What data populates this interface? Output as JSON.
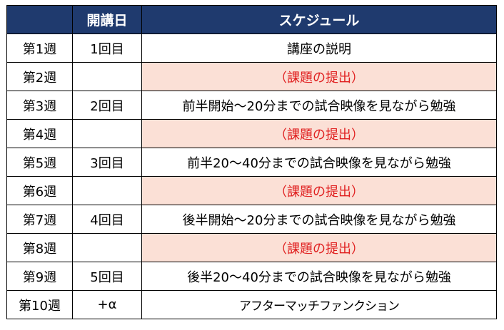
{
  "headers": [
    "",
    "開講日",
    "スケジュール"
  ],
  "rows": [
    {
      "week": "第1週",
      "session": "1回目",
      "schedule": "講座の説明",
      "task": false
    },
    {
      "week": "第2週",
      "session": "",
      "schedule": "（課題の提出）",
      "task": true
    },
    {
      "week": "第3週",
      "session": "2回目",
      "schedule": "前半開始～20分までの試合映像を見ながら勉強",
      "task": false
    },
    {
      "week": "第4週",
      "session": "",
      "schedule": "（課題の提出）",
      "task": true
    },
    {
      "week": "第5週",
      "session": "3回目",
      "schedule": "前半20～40分までの試合映像を見ながら勉強",
      "task": false
    },
    {
      "week": "第6週",
      "session": "",
      "schedule": "（課題の提出）",
      "task": true
    },
    {
      "week": "第7週",
      "session": "4回目",
      "schedule": "後半開始～20分までの試合映像を見ながら勉強",
      "task": false
    },
    {
      "week": "第8週",
      "session": "",
      "schedule": "（課題の提出）",
      "task": true
    },
    {
      "week": "第9週",
      "session": "5回目",
      "schedule": "後半20～40分までの試合映像を見ながら勉強",
      "task": false
    },
    {
      "week": "第10週",
      "session": "+α",
      "schedule": "アフターマッチファンクション",
      "task": false
    }
  ],
  "colors": {
    "header_bg": "#1f3a6e",
    "task_bg": "#fbe0d6",
    "task_text": "#e02020"
  }
}
